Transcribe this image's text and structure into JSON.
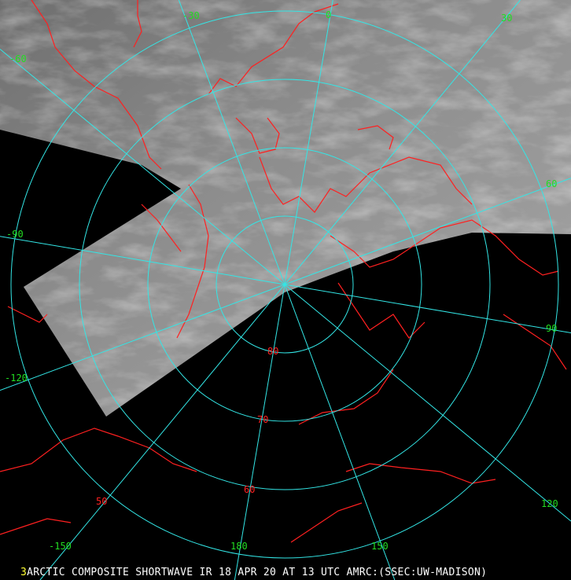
{
  "map": {
    "projection": "polar stereographic (north pole)",
    "colors": {
      "background": "#000000",
      "graticule": "#33e6e6",
      "coastline": "#ff2020",
      "longitude_labels": "#22dd22",
      "latitude_labels": "#ff2020",
      "imagery": "#8a8a8a"
    },
    "longitude_labels": [
      "0",
      "30",
      "60",
      "90",
      "120",
      "150",
      "180",
      "-150",
      "-120",
      "-90",
      "-60",
      "-30"
    ],
    "latitude_labels": [
      "80",
      "70",
      "60",
      "50"
    ]
  },
  "caption": {
    "frame_number": "3",
    "text": "ARCTIC COMPOSITE SHORTWAVE IR 18 APR 20 AT 13 UTC AMRC:(SSEC:UW-MADISON)"
  }
}
